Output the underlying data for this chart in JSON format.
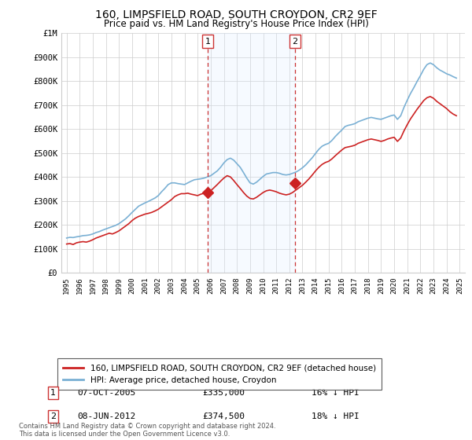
{
  "title": "160, LIMPSFIELD ROAD, SOUTH CROYDON, CR2 9EF",
  "subtitle": "Price paid vs. HM Land Registry's House Price Index (HPI)",
  "legend_line1": "160, LIMPSFIELD ROAD, SOUTH CROYDON, CR2 9EF (detached house)",
  "legend_line2": "HPI: Average price, detached house, Croydon",
  "annotation1_label": "1",
  "annotation1_date": "07-OCT-2005",
  "annotation1_price": "£335,000",
  "annotation1_hpi": "16% ↓ HPI",
  "annotation1_year": 2005.77,
  "annotation1_value": 335000,
  "annotation2_label": "2",
  "annotation2_date": "08-JUN-2012",
  "annotation2_price": "£374,500",
  "annotation2_hpi": "18% ↓ HPI",
  "annotation2_year": 2012.44,
  "annotation2_value": 374500,
  "footnote": "Contains HM Land Registry data © Crown copyright and database right 2024.\nThis data is licensed under the Open Government Licence v3.0.",
  "ylim": [
    0,
    1000000
  ],
  "yticks": [
    0,
    100000,
    200000,
    300000,
    400000,
    500000,
    600000,
    700000,
    800000,
    900000,
    1000000
  ],
  "ytick_labels": [
    "£0",
    "£100K",
    "£200K",
    "£300K",
    "£400K",
    "£500K",
    "£600K",
    "£700K",
    "£800K",
    "£900K",
    "£1M"
  ],
  "hpi_color": "#7ab0d4",
  "price_color": "#cc2222",
  "vline_color": "#cc3333",
  "shade_color": "#ddeeff",
  "bg_color": "#ffffff",
  "grid_color": "#cccccc",
  "hpi_data": [
    [
      1995.0,
      145000
    ],
    [
      1995.25,
      148000
    ],
    [
      1995.5,
      147000
    ],
    [
      1995.75,
      150000
    ],
    [
      1996.0,
      152000
    ],
    [
      1996.25,
      155000
    ],
    [
      1996.5,
      156000
    ],
    [
      1996.75,
      158000
    ],
    [
      1997.0,
      162000
    ],
    [
      1997.25,
      168000
    ],
    [
      1997.5,
      172000
    ],
    [
      1997.75,
      178000
    ],
    [
      1998.0,
      183000
    ],
    [
      1998.25,
      188000
    ],
    [
      1998.5,
      193000
    ],
    [
      1998.75,
      198000
    ],
    [
      1999.0,
      205000
    ],
    [
      1999.25,
      215000
    ],
    [
      1999.5,
      225000
    ],
    [
      1999.75,
      238000
    ],
    [
      2000.0,
      252000
    ],
    [
      2000.25,
      265000
    ],
    [
      2000.5,
      278000
    ],
    [
      2000.75,
      285000
    ],
    [
      2001.0,
      292000
    ],
    [
      2001.25,
      298000
    ],
    [
      2001.5,
      305000
    ],
    [
      2001.75,
      312000
    ],
    [
      2002.0,
      322000
    ],
    [
      2002.25,
      338000
    ],
    [
      2002.5,
      352000
    ],
    [
      2002.75,
      368000
    ],
    [
      2003.0,
      375000
    ],
    [
      2003.25,
      375000
    ],
    [
      2003.5,
      372000
    ],
    [
      2003.75,
      370000
    ],
    [
      2004.0,
      368000
    ],
    [
      2004.25,
      375000
    ],
    [
      2004.5,
      382000
    ],
    [
      2004.75,
      388000
    ],
    [
      2005.0,
      390000
    ],
    [
      2005.25,
      392000
    ],
    [
      2005.5,
      395000
    ],
    [
      2005.75,
      400000
    ],
    [
      2006.0,
      405000
    ],
    [
      2006.25,
      415000
    ],
    [
      2006.5,
      425000
    ],
    [
      2006.75,
      440000
    ],
    [
      2007.0,
      458000
    ],
    [
      2007.25,
      472000
    ],
    [
      2007.5,
      478000
    ],
    [
      2007.75,
      470000
    ],
    [
      2008.0,
      455000
    ],
    [
      2008.25,
      440000
    ],
    [
      2008.5,
      418000
    ],
    [
      2008.75,
      395000
    ],
    [
      2009.0,
      375000
    ],
    [
      2009.25,
      370000
    ],
    [
      2009.5,
      378000
    ],
    [
      2009.75,
      390000
    ],
    [
      2010.0,
      402000
    ],
    [
      2010.25,
      412000
    ],
    [
      2010.5,
      415000
    ],
    [
      2010.75,
      418000
    ],
    [
      2011.0,
      418000
    ],
    [
      2011.25,
      415000
    ],
    [
      2011.5,
      410000
    ],
    [
      2011.75,
      408000
    ],
    [
      2012.0,
      410000
    ],
    [
      2012.25,
      415000
    ],
    [
      2012.5,
      420000
    ],
    [
      2012.75,
      428000
    ],
    [
      2013.0,
      438000
    ],
    [
      2013.25,
      450000
    ],
    [
      2013.5,
      465000
    ],
    [
      2013.75,
      480000
    ],
    [
      2014.0,
      498000
    ],
    [
      2014.25,
      515000
    ],
    [
      2014.5,
      528000
    ],
    [
      2014.75,
      535000
    ],
    [
      2015.0,
      540000
    ],
    [
      2015.25,
      552000
    ],
    [
      2015.5,
      568000
    ],
    [
      2015.75,
      582000
    ],
    [
      2016.0,
      595000
    ],
    [
      2016.25,
      610000
    ],
    [
      2016.5,
      615000
    ],
    [
      2016.75,
      618000
    ],
    [
      2017.0,
      622000
    ],
    [
      2017.25,
      630000
    ],
    [
      2017.5,
      635000
    ],
    [
      2017.75,
      640000
    ],
    [
      2018.0,
      645000
    ],
    [
      2018.25,
      648000
    ],
    [
      2018.5,
      645000
    ],
    [
      2018.75,
      642000
    ],
    [
      2019.0,
      640000
    ],
    [
      2019.25,
      645000
    ],
    [
      2019.5,
      650000
    ],
    [
      2019.75,
      655000
    ],
    [
      2020.0,
      658000
    ],
    [
      2020.25,
      640000
    ],
    [
      2020.5,
      655000
    ],
    [
      2020.75,
      690000
    ],
    [
      2021.0,
      720000
    ],
    [
      2021.25,
      748000
    ],
    [
      2021.5,
      772000
    ],
    [
      2021.75,
      798000
    ],
    [
      2022.0,
      822000
    ],
    [
      2022.25,
      848000
    ],
    [
      2022.5,
      868000
    ],
    [
      2022.75,
      875000
    ],
    [
      2023.0,
      868000
    ],
    [
      2023.25,
      855000
    ],
    [
      2023.5,
      845000
    ],
    [
      2023.75,
      838000
    ],
    [
      2024.0,
      830000
    ],
    [
      2024.25,
      825000
    ],
    [
      2024.5,
      818000
    ],
    [
      2024.75,
      812000
    ]
  ],
  "price_data": [
    [
      1995.0,
      120000
    ],
    [
      1995.25,
      122000
    ],
    [
      1995.5,
      118000
    ],
    [
      1995.75,
      125000
    ],
    [
      1996.0,
      128000
    ],
    [
      1996.25,
      130000
    ],
    [
      1996.5,
      128000
    ],
    [
      1996.75,
      132000
    ],
    [
      1997.0,
      138000
    ],
    [
      1997.25,
      145000
    ],
    [
      1997.5,
      150000
    ],
    [
      1997.75,
      155000
    ],
    [
      1998.0,
      160000
    ],
    [
      1998.25,
      165000
    ],
    [
      1998.5,
      162000
    ],
    [
      1998.75,
      168000
    ],
    [
      1999.0,
      175000
    ],
    [
      1999.25,
      185000
    ],
    [
      1999.5,
      195000
    ],
    [
      1999.75,
      205000
    ],
    [
      2000.0,
      218000
    ],
    [
      2000.25,
      228000
    ],
    [
      2000.5,
      235000
    ],
    [
      2000.75,
      240000
    ],
    [
      2001.0,
      245000
    ],
    [
      2001.25,
      248000
    ],
    [
      2001.5,
      252000
    ],
    [
      2001.75,
      258000
    ],
    [
      2002.0,
      265000
    ],
    [
      2002.25,
      275000
    ],
    [
      2002.5,
      285000
    ],
    [
      2002.75,
      295000
    ],
    [
      2003.0,
      305000
    ],
    [
      2003.25,
      318000
    ],
    [
      2003.5,
      325000
    ],
    [
      2003.75,
      330000
    ],
    [
      2004.0,
      330000
    ],
    [
      2004.25,
      332000
    ],
    [
      2004.5,
      328000
    ],
    [
      2004.75,
      325000
    ],
    [
      2005.0,
      322000
    ],
    [
      2005.25,
      328000
    ],
    [
      2005.5,
      332000
    ],
    [
      2005.75,
      335000
    ],
    [
      2006.0,
      342000
    ],
    [
      2006.25,
      355000
    ],
    [
      2006.5,
      368000
    ],
    [
      2006.75,
      382000
    ],
    [
      2007.0,
      395000
    ],
    [
      2007.25,
      405000
    ],
    [
      2007.5,
      400000
    ],
    [
      2007.75,
      385000
    ],
    [
      2008.0,
      368000
    ],
    [
      2008.25,
      352000
    ],
    [
      2008.5,
      335000
    ],
    [
      2008.75,
      320000
    ],
    [
      2009.0,
      310000
    ],
    [
      2009.25,
      308000
    ],
    [
      2009.5,
      315000
    ],
    [
      2009.75,
      325000
    ],
    [
      2010.0,
      335000
    ],
    [
      2010.25,
      342000
    ],
    [
      2010.5,
      345000
    ],
    [
      2010.75,
      342000
    ],
    [
      2011.0,
      338000
    ],
    [
      2011.25,
      332000
    ],
    [
      2011.5,
      328000
    ],
    [
      2011.75,
      325000
    ],
    [
      2012.0,
      328000
    ],
    [
      2012.25,
      335000
    ],
    [
      2012.5,
      345000
    ],
    [
      2012.75,
      355000
    ],
    [
      2013.0,
      365000
    ],
    [
      2013.25,
      378000
    ],
    [
      2013.5,
      392000
    ],
    [
      2013.75,
      408000
    ],
    [
      2014.0,
      425000
    ],
    [
      2014.25,
      440000
    ],
    [
      2014.5,
      452000
    ],
    [
      2014.75,
      460000
    ],
    [
      2015.0,
      465000
    ],
    [
      2015.25,
      475000
    ],
    [
      2015.5,
      488000
    ],
    [
      2015.75,
      500000
    ],
    [
      2016.0,
      512000
    ],
    [
      2016.25,
      522000
    ],
    [
      2016.5,
      525000
    ],
    [
      2016.75,
      528000
    ],
    [
      2017.0,
      532000
    ],
    [
      2017.25,
      540000
    ],
    [
      2017.5,
      545000
    ],
    [
      2017.75,
      550000
    ],
    [
      2018.0,
      555000
    ],
    [
      2018.25,
      558000
    ],
    [
      2018.5,
      555000
    ],
    [
      2018.75,
      552000
    ],
    [
      2019.0,
      548000
    ],
    [
      2019.25,
      552000
    ],
    [
      2019.5,
      558000
    ],
    [
      2019.75,
      562000
    ],
    [
      2020.0,
      565000
    ],
    [
      2020.25,
      548000
    ],
    [
      2020.5,
      562000
    ],
    [
      2020.75,
      592000
    ],
    [
      2021.0,
      618000
    ],
    [
      2021.25,
      642000
    ],
    [
      2021.5,
      662000
    ],
    [
      2021.75,
      682000
    ],
    [
      2022.0,
      700000
    ],
    [
      2022.25,
      718000
    ],
    [
      2022.5,
      730000
    ],
    [
      2022.75,
      735000
    ],
    [
      2023.0,
      728000
    ],
    [
      2023.25,
      715000
    ],
    [
      2023.5,
      705000
    ],
    [
      2023.75,
      695000
    ],
    [
      2024.0,
      685000
    ],
    [
      2024.25,
      672000
    ],
    [
      2024.5,
      662000
    ],
    [
      2024.75,
      655000
    ]
  ]
}
